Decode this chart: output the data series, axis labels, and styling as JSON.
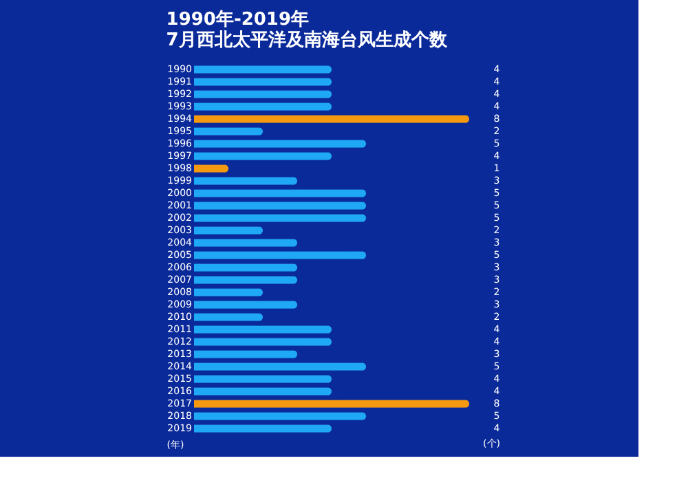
{
  "chart_data": {
    "type": "bar",
    "orientation": "horizontal",
    "title": "1990年-2019年\n7月西北太平洋及南海台风生成个数",
    "ylabel": "(年)",
    "xlabel": "(个)",
    "categories": [
      "1990",
      "1991",
      "1992",
      "1993",
      "1994",
      "1995",
      "1996",
      "1997",
      "1998",
      "1999",
      "2000",
      "2001",
      "2002",
      "2003",
      "2004",
      "2005",
      "2006",
      "2007",
      "2008",
      "2009",
      "2010",
      "2011",
      "2012",
      "2013",
      "2014",
      "2015",
      "2016",
      "2017",
      "2018",
      "2019"
    ],
    "values": [
      4,
      4,
      4,
      4,
      8,
      2,
      5,
      4,
      1,
      3,
      5,
      5,
      5,
      2,
      3,
      5,
      3,
      3,
      2,
      3,
      2,
      4,
      4,
      3,
      5,
      4,
      4,
      8,
      5,
      4
    ],
    "colors": [
      "#1fa8f5",
      "#1fa8f5",
      "#1fa8f5",
      "#1fa8f5",
      "#f59a10",
      "#1fa8f5",
      "#1fa8f5",
      "#1fa8f5",
      "#f59a10",
      "#1fa8f5",
      "#1fa8f5",
      "#1fa8f5",
      "#1fa8f5",
      "#1fa8f5",
      "#1fa8f5",
      "#1fa8f5",
      "#1fa8f5",
      "#1fa8f5",
      "#1fa8f5",
      "#1fa8f5",
      "#1fa8f5",
      "#1fa8f5",
      "#1fa8f5",
      "#1fa8f5",
      "#1fa8f5",
      "#1fa8f5",
      "#1fa8f5",
      "#f59a10",
      "#1fa8f5",
      "#1fa8f5"
    ],
    "data_labels": true,
    "grid": false
  }
}
